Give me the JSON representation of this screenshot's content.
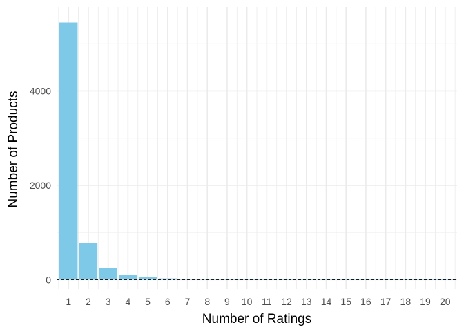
{
  "chart_data": {
    "type": "bar",
    "title": "",
    "xlabel": "Number of Ratings",
    "ylabel": "Number of Products",
    "categories": [
      "1",
      "2",
      "3",
      "4",
      "5",
      "6",
      "7",
      "8",
      "9",
      "10",
      "11",
      "12",
      "13",
      "14",
      "15",
      "16",
      "17",
      "18",
      "19",
      "20"
    ],
    "values": [
      5450,
      775,
      240,
      95,
      50,
      25,
      14,
      9,
      6,
      4,
      3,
      2,
      2,
      1,
      1,
      1,
      1,
      1,
      1,
      1
    ],
    "yticks": [
      0,
      2000,
      4000
    ],
    "ylim": [
      -200,
      5780
    ],
    "grid": true,
    "legend": "none",
    "reference_line": {
      "y": 0,
      "style": "dashed"
    },
    "colors": {
      "bar": "#7ec8e8",
      "grid": "#ebebeb",
      "reference_line": "#000000",
      "tick_text": "#4d4d4d"
    }
  }
}
